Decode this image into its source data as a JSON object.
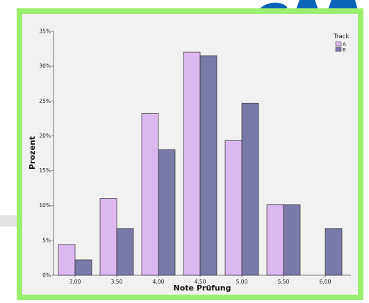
{
  "colors": {
    "frame": "#9cef6c",
    "plot_bg": "#f1f1f1",
    "series_a": "#dcb8f0",
    "series_b": "#7a7aa8",
    "logo": "#0a63b8"
  },
  "chart_data": {
    "type": "bar",
    "title": "",
    "xlabel": "Note Prüfung",
    "ylabel": "Prozent",
    "categories": [
      "3,00",
      "3,50",
      "4,00",
      "4,50",
      "5,00",
      "5,50",
      "6,00"
    ],
    "series": [
      {
        "name": "A",
        "values": [
          4.4,
          11.0,
          23.2,
          32.0,
          19.3,
          10.1,
          0
        ]
      },
      {
        "name": "B",
        "values": [
          2.2,
          6.7,
          18.0,
          31.5,
          24.7,
          10.1,
          6.7
        ]
      }
    ],
    "ylim": [
      0,
      35
    ],
    "y_ticks": [
      "0%",
      "5%",
      "10%",
      "15%",
      "20%",
      "25%",
      "30%",
      "35%"
    ],
    "legend": {
      "title": "Track",
      "placement": "top-right"
    },
    "grid": false
  }
}
